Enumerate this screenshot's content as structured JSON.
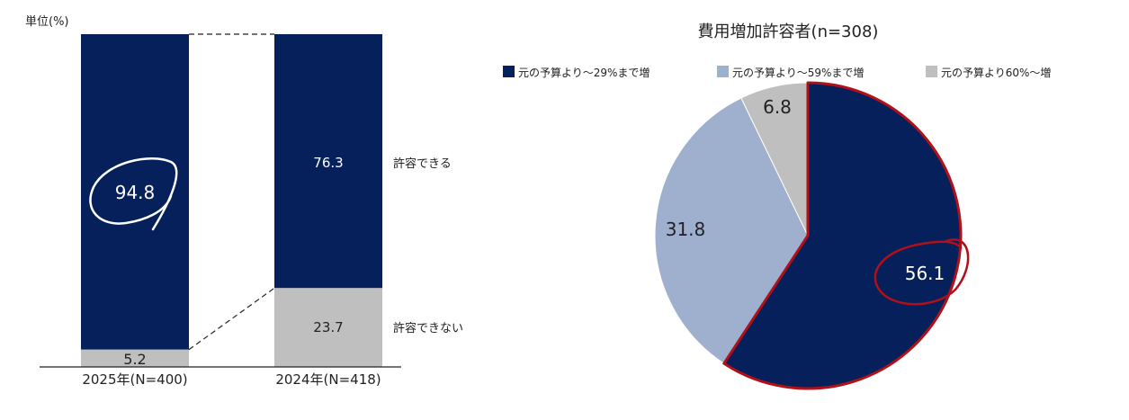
{
  "chart_data": [
    {
      "type": "bar",
      "stacked": true,
      "unit_label": "単位(%)",
      "categories": [
        "2025年(N=400)",
        "2024年(N=418)"
      ],
      "series": [
        {
          "name": "許容できる",
          "values": [
            94.8,
            76.3
          ],
          "color": "#06205c"
        },
        {
          "name": "許容できない",
          "values": [
            5.2,
            23.7
          ],
          "color": "#bfbfbf"
        }
      ],
      "value_labels": {
        "allow": [
          "94.8",
          "76.3"
        ],
        "deny": [
          "5.2",
          "23.7"
        ]
      },
      "ylim": [
        0,
        100
      ],
      "highlighted_value": "94.8"
    },
    {
      "type": "pie",
      "title": "費用増加許容者(n=308)",
      "legend_position": "top",
      "slices": [
        {
          "name": "元の予算より～29%まで増",
          "value": 56.1,
          "label": "56.1",
          "color": "#06205c"
        },
        {
          "name": "元の予算より～59%まで増",
          "value": 31.8,
          "label": "31.8",
          "color": "#9fb0cf"
        },
        {
          "name": "元の予算より60%～増",
          "value": 6.8,
          "label": "6.8",
          "color": "#bfbfbf"
        }
      ],
      "highlighted_slice": "元の予算より～29%まで増",
      "highlight_color": "#b01018"
    }
  ]
}
